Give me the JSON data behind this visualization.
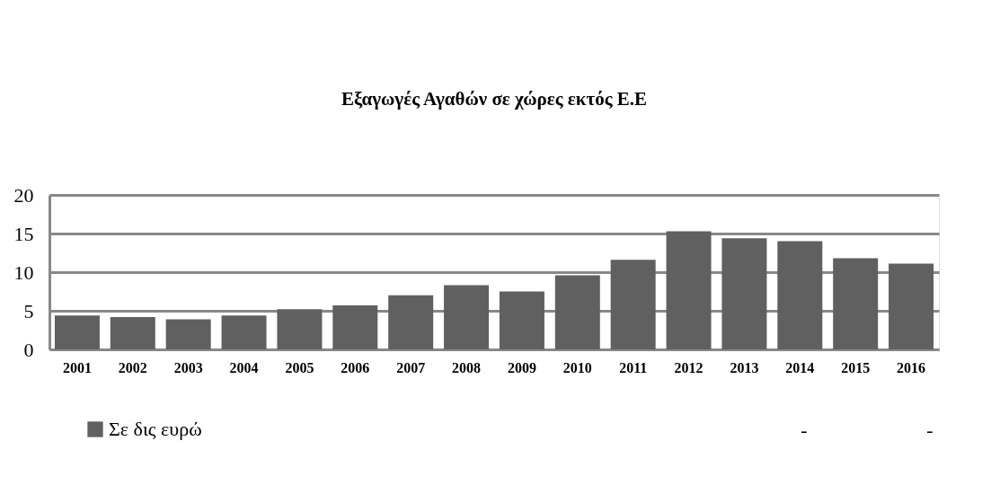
{
  "chart_data": {
    "type": "bar",
    "title": "Εξαγωγές Αγαθών σε χώρες εκτός Ε.Ε",
    "categories": [
      "2001",
      "2002",
      "2003",
      "2004",
      "2005",
      "2006",
      "2007",
      "2008",
      "2009",
      "2010",
      "2011",
      "2012",
      "2013",
      "2014",
      "2015",
      "2016"
    ],
    "series": [
      {
        "name": "Σε δις ευρώ",
        "color": "#606060",
        "values": [
          4.4,
          4.2,
          3.9,
          4.4,
          5.2,
          5.7,
          7.0,
          8.3,
          7.5,
          9.6,
          11.6,
          15.3,
          14.4,
          14.0,
          11.8,
          11.1
        ]
      }
    ],
    "ylim": [
      0,
      20
    ],
    "yticks": [
      0,
      5,
      10,
      15,
      20
    ],
    "grid": "y",
    "legend": "bottom left",
    "annotations": [
      "-",
      "-"
    ]
  }
}
